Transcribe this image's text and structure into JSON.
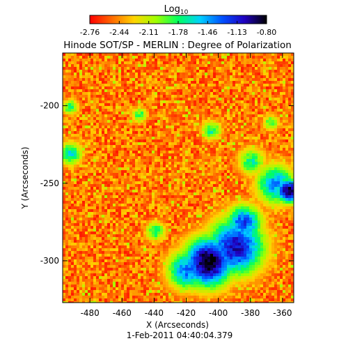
{
  "chart_data": {
    "type": "heatmap",
    "title": "Hinode SOT/SP - MERLIN : Degree of Polarization",
    "xlabel": "X (Arcseconds)",
    "ylabel": "Y (Arcseconds)",
    "date_label": "1-Feb-2011 04:40:04.379",
    "colorbar": {
      "label_base": "Log",
      "label_sub": "10",
      "range": [
        -2.76,
        -0.8
      ],
      "tick_labels": [
        "-2.76",
        "-2.44",
        "-2.11",
        "-1.78",
        "-1.46",
        "-1.13",
        "-0.80"
      ],
      "colormap": [
        "#ff0000",
        "#ff6a00",
        "#ffd400",
        "#a0ff00",
        "#00ff60",
        "#00d0ff",
        "#0050ff",
        "#2000c0",
        "#000000"
      ]
    },
    "xlim": [
      -497,
      -353
    ],
    "ylim": [
      -327,
      -166
    ],
    "x_ticks": [
      -480,
      -460,
      -440,
      -420,
      -400,
      -380,
      -360
    ],
    "x_tick_labels": [
      "-480",
      "-460",
      "-440",
      "-420",
      "-400",
      "-380",
      "-360"
    ],
    "y_ticks": [
      -200,
      -250,
      -300
    ],
    "y_tick_labels": [
      "-200",
      "-250",
      "-300"
    ],
    "polarized_regions": [
      {
        "x": -407,
        "y": -300,
        "radius": 12,
        "level": 0.95
      },
      {
        "x": -390,
        "y": -290,
        "radius": 14,
        "level": 0.8
      },
      {
        "x": -385,
        "y": -275,
        "radius": 9,
        "level": 0.7
      },
      {
        "x": -357,
        "y": -254,
        "radius": 6,
        "level": 0.9
      },
      {
        "x": -365,
        "y": -250,
        "radius": 10,
        "level": 0.6
      },
      {
        "x": -420,
        "y": -305,
        "radius": 10,
        "level": 0.65
      },
      {
        "x": -440,
        "y": -280,
        "radius": 5,
        "level": 0.45
      },
      {
        "x": -493,
        "y": -230,
        "radius": 6,
        "level": 0.5
      },
      {
        "x": -493,
        "y": -200,
        "radius": 4,
        "level": 0.45
      },
      {
        "x": -405,
        "y": -215,
        "radius": 5,
        "level": 0.45
      },
      {
        "x": -450,
        "y": -205,
        "radius": 4,
        "level": 0.4
      },
      {
        "x": -368,
        "y": -210,
        "radius": 4,
        "level": 0.4
      },
      {
        "x": -380,
        "y": -235,
        "radius": 7,
        "level": 0.45
      }
    ]
  }
}
